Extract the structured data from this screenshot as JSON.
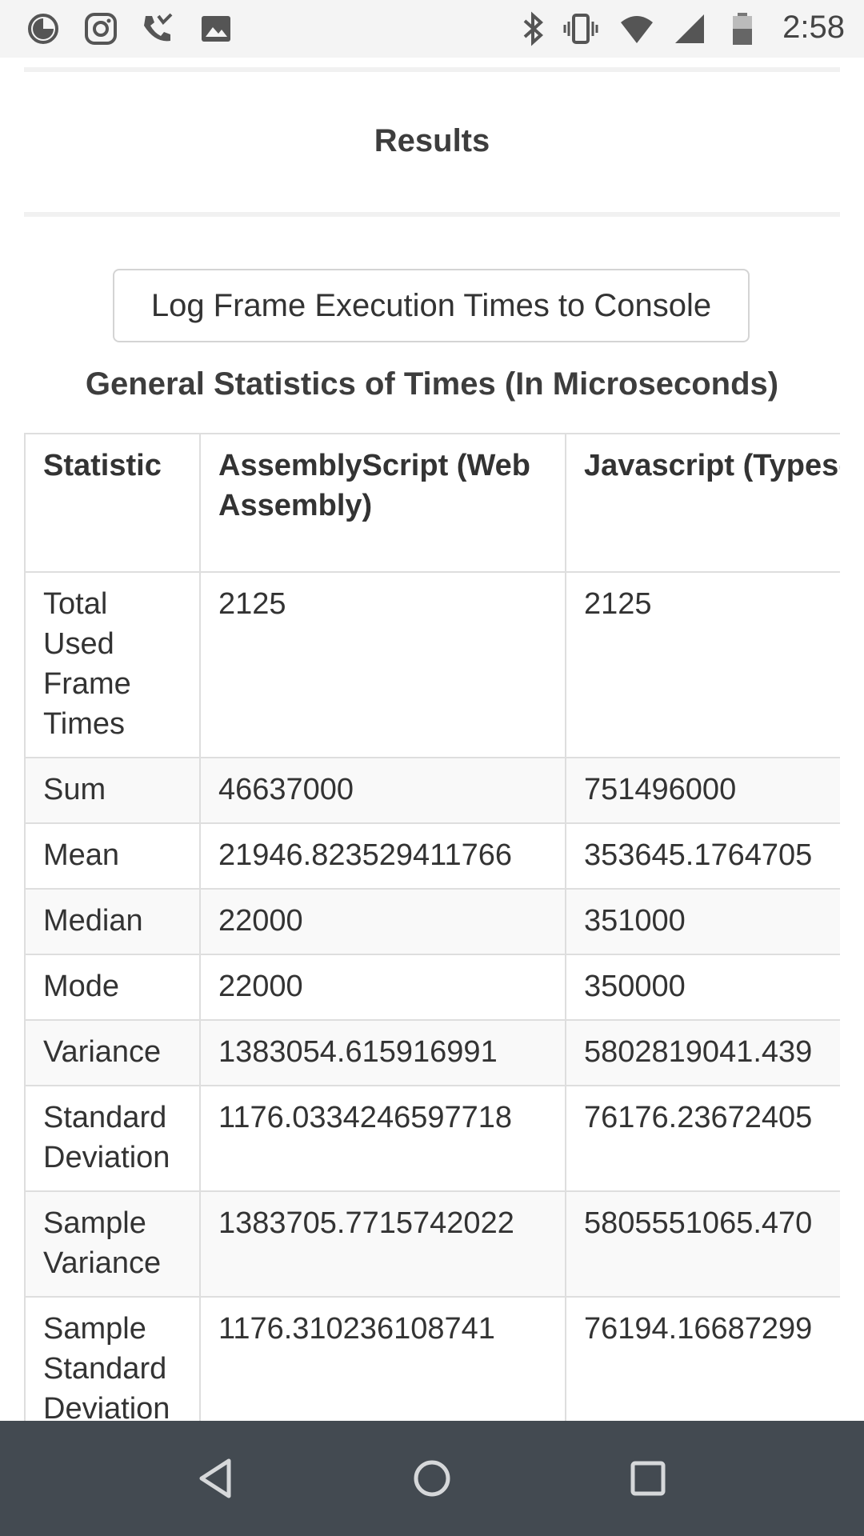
{
  "status_bar": {
    "time": "2:58",
    "left_icons": [
      "data-saver-icon",
      "instagram-icon",
      "missed-call-icon",
      "image-icon"
    ],
    "right_icons": [
      "bluetooth-icon",
      "vibrate-icon",
      "wifi-icon",
      "cell-signal-icon",
      "battery-icon"
    ]
  },
  "results": {
    "title": "Results",
    "log_button_label": "Log Frame Execution Times to Console",
    "stats_heading": "General Statistics of Times (In Microseconds)"
  },
  "table": {
    "headers": [
      "Statistic",
      "AssemblyScript (Web Assembly)",
      "Javascript (Typescript)"
    ],
    "rows": [
      [
        "Total Used Frame Times",
        "2125",
        "2125"
      ],
      [
        "Sum",
        "46637000",
        "751496000"
      ],
      [
        "Mean",
        "21946.823529411766",
        "353645.1764705"
      ],
      [
        "Median",
        "22000",
        "351000"
      ],
      [
        "Mode",
        "22000",
        "350000"
      ],
      [
        "Variance",
        "1383054.615916991",
        "5802819041.439"
      ],
      [
        "Standard Deviation",
        "1176.0334246597718",
        "76176.23672405"
      ],
      [
        "Sample Variance",
        "1383705.7715742022",
        "5805551065.470"
      ],
      [
        "Sample Standard Deviation",
        "1176.310236108741",
        "76194.16687299"
      ]
    ]
  },
  "nav_bar": {
    "icons": [
      "back-icon",
      "home-icon",
      "recents-icon"
    ]
  }
}
